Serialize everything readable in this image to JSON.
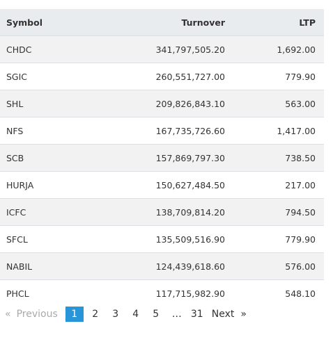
{
  "table": {
    "headers": {
      "symbol": "Symbol",
      "turnover": "Turnover",
      "ltp": "LTP"
    },
    "rows": [
      {
        "symbol": "CHDC",
        "turnover": "341,797,505.20",
        "ltp": "1,692.00"
      },
      {
        "symbol": "SGIC",
        "turnover": "260,551,727.00",
        "ltp": "779.90"
      },
      {
        "symbol": "SHL",
        "turnover": "209,826,843.10",
        "ltp": "563.00"
      },
      {
        "symbol": "NFS",
        "turnover": "167,735,726.60",
        "ltp": "1,417.00"
      },
      {
        "symbol": "SCB",
        "turnover": "157,869,797.30",
        "ltp": "738.50"
      },
      {
        "symbol": "HURJA",
        "turnover": "150,627,484.50",
        "ltp": "217.00"
      },
      {
        "symbol": "ICFC",
        "turnover": "138,709,814.20",
        "ltp": "794.50"
      },
      {
        "symbol": "SFCL",
        "turnover": "135,509,516.90",
        "ltp": "779.90"
      },
      {
        "symbol": "NABIL",
        "turnover": "124,439,618.60",
        "ltp": "576.00"
      },
      {
        "symbol": "PHCL",
        "turnover": "117,715,982.90",
        "ltp": "548.10"
      }
    ]
  },
  "pagination": {
    "prev_arrow": "«",
    "prev_label": "Previous",
    "pages": [
      "1",
      "2",
      "3",
      "4",
      "5"
    ],
    "active_page": "1",
    "ellipsis": "…",
    "last_page": "31",
    "next_label": "Next",
    "next_arrow": "»",
    "active_color": "#2795d8"
  }
}
